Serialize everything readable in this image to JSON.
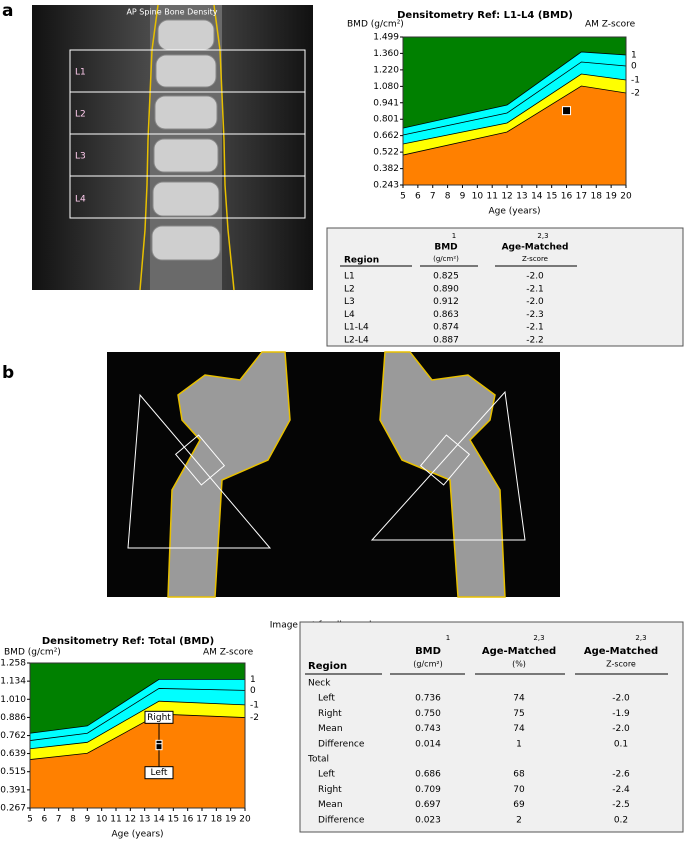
{
  "figure_labels": [
    "a",
    "b"
  ],
  "spine_image": {
    "title": "AP Spine Bone Density",
    "regions": [
      "L1",
      "L2",
      "L3",
      "L4"
    ]
  },
  "hip_image": {
    "caption": "Image not for diagnosis"
  },
  "chart_data": [
    {
      "type": "line",
      "title": "Densitometry Ref: L1-L4 (BMD)",
      "y_label": "BMD (g/cm²)",
      "y2_label": "AM Z-score",
      "x_label": "Age (years)",
      "background": "#008000",
      "x": [
        5,
        12,
        17,
        20
      ],
      "series": [
        {
          "name": "1",
          "color": "#00ffff",
          "values": [
            0.726,
            0.922,
            1.372,
            1.346
          ]
        },
        {
          "name": "0",
          "color": "#00ffff",
          "values": [
            0.667,
            0.854,
            1.287,
            1.253
          ]
        },
        {
          "name": "-1",
          "color": "#ffff00",
          "values": [
            0.591,
            0.769,
            1.185,
            1.134
          ]
        },
        {
          "name": "-2",
          "color": "#ff8000",
          "values": [
            0.497,
            0.693,
            1.083,
            1.024
          ]
        }
      ],
      "patient": {
        "x": [
          16
        ],
        "values": [
          0.874
        ]
      },
      "xlim": [
        5,
        20
      ],
      "xticks": [
        5,
        6,
        7,
        8,
        9,
        10,
        11,
        12,
        13,
        14,
        15,
        16,
        17,
        18,
        19,
        20
      ],
      "ylim": [
        0.243,
        1.499
      ],
      "yticks": [
        {
          "value": 1.499,
          "label": "1.499"
        },
        {
          "value": 1.36,
          "label": "1.360"
        },
        {
          "value": 1.22,
          "label": "1.220"
        },
        {
          "value": 1.08,
          "label": "1.080"
        },
        0.941,
        0.801,
        0.662,
        0.522,
        0.382,
        0.243
      ]
    },
    {
      "type": "line",
      "title": "Densitometry Ref: Total (BMD)",
      "y_label": "BMD (g/cm²)",
      "y2_label": "AM Z-score",
      "x_label": "Age (years)",
      "background": "#008000",
      "x": [
        5,
        9,
        14,
        20
      ],
      "series": [
        {
          "name": "1",
          "color": "#00ffff",
          "values": [
            0.778,
            0.828,
            1.146,
            1.146
          ]
        },
        {
          "name": "0",
          "color": "#00ffff",
          "values": [
            0.728,
            0.778,
            1.084,
            1.071
          ]
        },
        {
          "name": "-1",
          "color": "#ffff00",
          "values": [
            0.672,
            0.716,
            0.997,
            0.972
          ]
        },
        {
          "name": "-2",
          "color": "#ff8000",
          "values": [
            0.598,
            0.641,
            0.909,
            0.885
          ]
        }
      ],
      "markers": {
        "names": [
          "Right",
          "Left"
        ],
        "x": [
          14,
          14
        ],
        "values": [
          0.709,
          0.686
        ]
      },
      "xlim": [
        5,
        20
      ],
      "xticks": [
        5,
        6,
        7,
        8,
        9,
        10,
        11,
        12,
        13,
        14,
        15,
        16,
        17,
        18,
        19,
        20
      ],
      "ylim": [
        0.267,
        1.258
      ],
      "yticks": [
        1.258,
        1.134,
        {
          "value": 1.01,
          "label": "1.010"
        },
        0.886,
        0.762,
        0.639,
        0.515,
        0.391,
        0.267
      ]
    }
  ],
  "table_a": {
    "columns": [
      "Region",
      "BMD",
      "Age-Matched"
    ],
    "units": [
      "(g/cm²)",
      "Z-score"
    ],
    "notes": [
      "1",
      "2,3"
    ],
    "rows": [
      [
        "L1",
        "0.825",
        "-2.0"
      ],
      [
        "L2",
        "0.890",
        "-2.1"
      ],
      [
        "L3",
        "0.912",
        "-2.0"
      ],
      [
        "L4",
        "0.863",
        "-2.3"
      ],
      [
        "L1-L4",
        "0.874",
        "-2.1"
      ],
      [
        "L2-L4",
        "0.887",
        "-2.2"
      ]
    ]
  },
  "table_b": {
    "columns": [
      "Region",
      "BMD",
      "Age-Matched",
      "Age-Matched"
    ],
    "units": [
      "(g/cm²)",
      "(%)",
      "Z-score"
    ],
    "notes": [
      "1",
      "2,3",
      "2,3"
    ],
    "groups": [
      {
        "name": "Neck",
        "rows": [
          [
            "Left",
            "0.736",
            "74",
            "-2.0"
          ],
          [
            "Right",
            "0.750",
            "75",
            "-1.9"
          ],
          [
            "Mean",
            "0.743",
            "74",
            "-2.0"
          ],
          [
            "Difference",
            "0.014",
            "1",
            "0.1"
          ]
        ]
      },
      {
        "name": "Total",
        "rows": [
          [
            "Left",
            "0.686",
            "68",
            "-2.6"
          ],
          [
            "Right",
            "0.709",
            "70",
            "-2.4"
          ],
          [
            "Mean",
            "0.697",
            "69",
            "-2.5"
          ],
          [
            "Difference",
            "0.023",
            "2",
            "0.2"
          ]
        ]
      }
    ]
  }
}
